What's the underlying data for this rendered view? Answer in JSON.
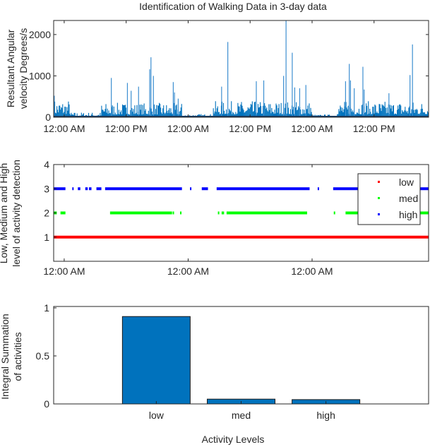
{
  "chart_data": [
    {
      "type": "bar",
      "title": "Identification of Walking Data in 3-day data",
      "ylabel": [
        "Resultant Angular",
        "velocity Degrees/s"
      ],
      "ylim": [
        0,
        2340
      ],
      "xlim_days": [
        -0.085,
        2.94
      ],
      "yticks": [
        0,
        1000,
        2000
      ],
      "xticks": [
        {
          "day": 0,
          "label": "12:00 AM"
        },
        {
          "day": 0.5,
          "label": "12:00 PM"
        },
        {
          "day": 1,
          "label": "12:00 AM"
        },
        {
          "day": 1.5,
          "label": "12:00 PM"
        },
        {
          "day": 2,
          "label": "12:00 AM"
        },
        {
          "day": 2.5,
          "label": "12:00 PM"
        }
      ],
      "color": "#0072BD",
      "activity_periods": [
        [
          -0.085,
          0.05,
          320
        ],
        [
          0.05,
          0.3,
          90
        ],
        [
          0.3,
          0.95,
          260
        ],
        [
          0.95,
          1.2,
          60
        ],
        [
          1.2,
          2.0,
          290
        ],
        [
          2.0,
          2.2,
          50
        ],
        [
          2.2,
          2.94,
          290
        ]
      ],
      "spikes": [
        [
          -0.08,
          520
        ],
        [
          0.38,
          950
        ],
        [
          0.51,
          830
        ],
        [
          0.54,
          640
        ],
        [
          0.6,
          740
        ],
        [
          0.69,
          1160
        ],
        [
          0.7,
          1450
        ],
        [
          0.72,
          1000
        ],
        [
          0.88,
          850
        ],
        [
          0.89,
          600
        ],
        [
          0.92,
          450
        ],
        [
          1.27,
          740
        ],
        [
          1.32,
          1820
        ],
        [
          1.55,
          870
        ],
        [
          1.61,
          890
        ],
        [
          1.77,
          1000
        ],
        [
          1.79,
          2340
        ],
        [
          1.84,
          1560
        ],
        [
          1.86,
          720
        ],
        [
          1.9,
          700
        ],
        [
          1.95,
          780
        ],
        [
          2.27,
          870
        ],
        [
          2.3,
          1290
        ],
        [
          2.31,
          890
        ],
        [
          2.34,
          700
        ],
        [
          2.41,
          1220
        ],
        [
          2.42,
          670
        ],
        [
          2.62,
          580
        ],
        [
          2.79,
          1020
        ],
        [
          2.81,
          1760
        ]
      ]
    },
    {
      "type": "scatter",
      "ylabel": [
        "Low, Medium and High",
        "level of activity detection"
      ],
      "ylim": [
        0,
        4
      ],
      "yticks": [
        1,
        2,
        3,
        4
      ],
      "xlim_days": [
        -0.085,
        2.94
      ],
      "xticks": [
        {
          "day": 0,
          "label": "12:00 AM"
        },
        {
          "day": 1,
          "label": "12:00 AM"
        },
        {
          "day": 2,
          "label": "12:00 AM"
        }
      ],
      "series": [
        {
          "name": "low",
          "value": 1,
          "color": "#FF0000",
          "segments": [
            [
              -0.085,
              2.94
            ]
          ]
        },
        {
          "name": "med",
          "value": 2,
          "color": "#00FF00",
          "segments": [
            [
              -0.085,
              -0.06
            ],
            [
              -0.03,
              0.01
            ],
            [
              0.37,
              0.87
            ],
            [
              0.875,
              0.885
            ],
            [
              0.935,
              0.945
            ],
            [
              1.24,
              1.25
            ],
            [
              1.27,
              1.29
            ],
            [
              1.31,
              1.96
            ],
            [
              2.175,
              2.185
            ],
            [
              2.27,
              2.94
            ]
          ]
        },
        {
          "name": "high",
          "value": 3,
          "color": "#0000FF",
          "segments": [
            [
              -0.085,
              0.01
            ],
            [
              0.065,
              0.075
            ],
            [
              0.11,
              0.13
            ],
            [
              0.17,
              0.19
            ],
            [
              0.2,
              0.22
            ],
            [
              0.26,
              0.3
            ],
            [
              0.33,
              0.95
            ],
            [
              1.015,
              1.025
            ],
            [
              1.11,
              1.16
            ],
            [
              1.23,
              1.98
            ],
            [
              2.045,
              2.055
            ],
            [
              2.17,
              2.94
            ]
          ]
        }
      ],
      "legend": {
        "placement": "top-right",
        "entries": [
          "low",
          "med",
          "high"
        ]
      }
    },
    {
      "type": "bar",
      "categories": [
        "low",
        "med",
        "high"
      ],
      "values": [
        0.91,
        0.05,
        0.045
      ],
      "ylabel": [
        "Integral Summation",
        "of activities"
      ],
      "xlabel": "Activity Levels",
      "ylim": [
        0,
        1
      ],
      "xlim": [
        -0.21,
        4.21
      ],
      "yticks": [
        0,
        0.5,
        1
      ],
      "yticklabels": [
        "0",
        "0.5",
        "1"
      ],
      "color": "#0072BD"
    }
  ]
}
